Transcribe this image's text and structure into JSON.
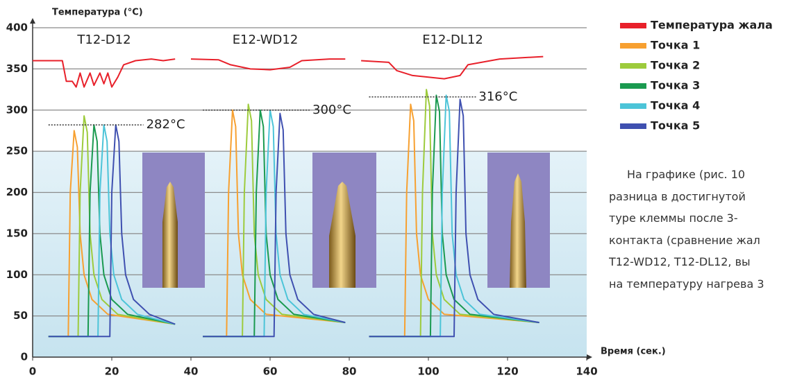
{
  "chart_data": {
    "type": "line",
    "y_label": "Температура (°C)",
    "x_label": "Время (сек.)",
    "xlim": [
      0,
      140
    ],
    "xticks": [
      0,
      20,
      40,
      60,
      80,
      100,
      120,
      140
    ],
    "ylim": [
      0,
      400
    ],
    "yticks": [
      0,
      50,
      100,
      150,
      200,
      250,
      300,
      350,
      400
    ],
    "grid": true,
    "annotations": [
      "T12-D12",
      "E12-WD12",
      "E12-DL12"
    ],
    "reference_lines": [
      {
        "value": 282,
        "label": "282°C",
        "xrange": [
          4,
          28
        ]
      },
      {
        "value": 300,
        "label": "300°C",
        "xrange": [
          43,
          70
        ]
      },
      {
        "value": 316,
        "label": "316°C",
        "xrange": [
          85,
          112
        ]
      }
    ],
    "series": [
      {
        "name": "Температура жала",
        "color": "#e8202a",
        "x": [
          0,
          7.5,
          8.5,
          10,
          11,
          12,
          13,
          14.5,
          15.5,
          17,
          18,
          19,
          20,
          21.5,
          23,
          26,
          30,
          33,
          36,
          null,
          40,
          47,
          50,
          55,
          60,
          65,
          68,
          75,
          79,
          null,
          83,
          90,
          92,
          96,
          100,
          104,
          108,
          110,
          118,
          129
        ],
        "values": [
          360,
          360,
          335,
          335,
          328,
          345,
          328,
          345,
          330,
          345,
          332,
          345,
          328,
          340,
          355,
          360,
          362,
          360,
          362,
          null,
          362,
          361,
          355,
          350,
          349,
          352,
          360,
          362,
          362,
          null,
          360,
          358,
          348,
          342,
          340,
          338,
          342,
          355,
          362,
          365
        ]
      },
      {
        "name": "Точка 1",
        "color": "#f7a030",
        "x": [
          4,
          9,
          9.5,
          10.5,
          11.3,
          12,
          13,
          15,
          19,
          36,
          null,
          43,
          49,
          49.5,
          50.5,
          51.3,
          52,
          53,
          55,
          59,
          79,
          null,
          85,
          94,
          94.5,
          95.5,
          96.3,
          97,
          98,
          100,
          104,
          128
        ],
        "values": [
          25,
          25,
          200,
          275,
          255,
          150,
          100,
          70,
          52,
          40,
          null,
          25,
          25,
          200,
          300,
          280,
          150,
          100,
          70,
          52,
          42,
          null,
          25,
          25,
          200,
          307,
          287,
          150,
          100,
          70,
          52,
          42
        ]
      },
      {
        "name": "Точка 2",
        "color": "#9dcb3c",
        "x": [
          4,
          11.5,
          12,
          13,
          13.8,
          14.5,
          15.5,
          17.5,
          21.5,
          36,
          null,
          43,
          53,
          53.5,
          54.5,
          55.3,
          56,
          57,
          59,
          63,
          79,
          null,
          85,
          98,
          98.5,
          99.5,
          100.3,
          101,
          102,
          104,
          108,
          128
        ],
        "values": [
          25,
          25,
          200,
          293,
          273,
          150,
          100,
          70,
          52,
          40,
          null,
          25,
          25,
          200,
          307,
          287,
          150,
          100,
          70,
          52,
          42,
          null,
          25,
          25,
          200,
          325,
          305,
          150,
          100,
          70,
          52,
          42
        ]
      },
      {
        "name": "Точка 3",
        "color": "#1a9a50",
        "x": [
          4,
          14,
          14.5,
          15.5,
          16.3,
          17,
          18,
          20,
          24,
          36,
          null,
          43,
          56,
          56.5,
          57.5,
          58.3,
          59,
          60,
          62,
          66,
          79,
          null,
          85,
          100.5,
          101,
          102,
          102.8,
          103.5,
          104.5,
          106.5,
          110.5,
          128
        ],
        "values": [
          25,
          25,
          200,
          282,
          262,
          150,
          100,
          70,
          52,
          40,
          null,
          25,
          25,
          200,
          300,
          280,
          150,
          100,
          70,
          52,
          42,
          null,
          25,
          25,
          200,
          318,
          298,
          150,
          100,
          70,
          52,
          42
        ]
      },
      {
        "name": "Точка 4",
        "color": "#4cc4d8",
        "x": [
          4,
          16.5,
          17,
          18,
          18.8,
          19.5,
          20.5,
          22.5,
          26.5,
          36,
          null,
          43,
          58.5,
          59,
          60,
          60.8,
          61.5,
          62.5,
          64.5,
          68.5,
          79,
          null,
          85,
          103,
          103.5,
          104.5,
          105.3,
          106,
          107,
          109,
          113,
          128
        ],
        "values": [
          25,
          25,
          200,
          282,
          262,
          150,
          100,
          70,
          52,
          40,
          null,
          25,
          25,
          200,
          300,
          280,
          150,
          100,
          70,
          52,
          42,
          null,
          25,
          25,
          200,
          318,
          298,
          150,
          100,
          70,
          52,
          42
        ]
      },
      {
        "name": "Точка 5",
        "color": "#3f50b0",
        "x": [
          4,
          19.5,
          20,
          21,
          21.8,
          22.5,
          23.5,
          25.5,
          29.5,
          36,
          null,
          43,
          61,
          61.5,
          62.5,
          63.3,
          64,
          65,
          67,
          71,
          79,
          null,
          85,
          106.5,
          107,
          108,
          108.8,
          109.5,
          110.5,
          112.5,
          116.5,
          128
        ],
        "values": [
          25,
          25,
          200,
          282,
          262,
          150,
          100,
          70,
          52,
          40,
          null,
          25,
          25,
          200,
          296,
          276,
          150,
          100,
          70,
          52,
          42,
          null,
          25,
          25,
          200,
          313,
          293,
          150,
          100,
          70,
          52,
          42
        ]
      }
    ]
  },
  "text": {
    "lines": [
      "На графике (рис. 10",
      "разница в достигнутой",
      "туре клеммы после 3-",
      "контакта (сравнение жал",
      "T12-WD12, T12-DL12, вы",
      "на температуру нагрева 3"
    ]
  }
}
